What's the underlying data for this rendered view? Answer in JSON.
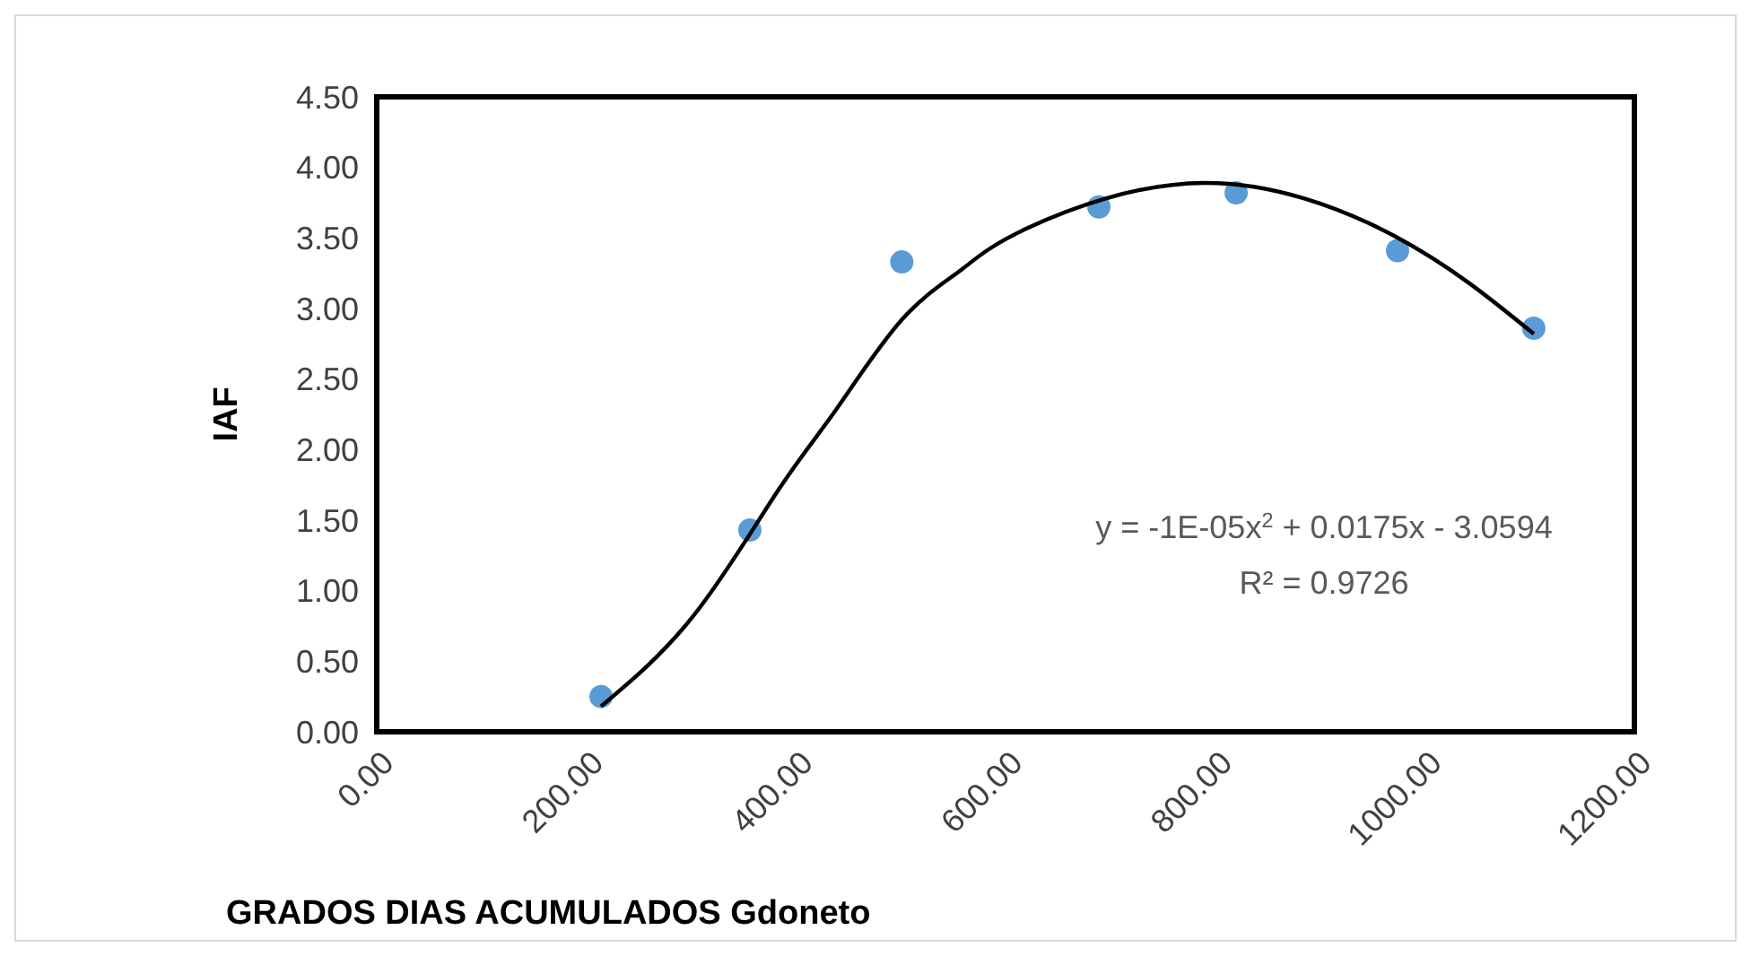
{
  "chart_data": {
    "type": "scatter",
    "xlabel": "GRADOS DIAS ACUMULADOS Gdoneto",
    "ylabel": "IAF",
    "xlim": [
      0,
      1200
    ],
    "ylim": [
      0,
      4.5
    ],
    "xticks": [
      {
        "value": 0,
        "label": "0.00"
      },
      {
        "value": 200,
        "label": "200.00"
      },
      {
        "value": 400,
        "label": "400.00"
      },
      {
        "value": 600,
        "label": "600.00"
      },
      {
        "value": 800,
        "label": "800.00"
      },
      {
        "value": 1000,
        "label": "1000.00"
      },
      {
        "value": 1200,
        "label": "1200.00"
      }
    ],
    "yticks": [
      {
        "value": 0,
        "label": "0.00"
      },
      {
        "value": 0.5,
        "label": "0.50"
      },
      {
        "value": 1,
        "label": "1.00"
      },
      {
        "value": 1.5,
        "label": "1.50"
      },
      {
        "value": 2,
        "label": "2.00"
      },
      {
        "value": 2.5,
        "label": "2.50"
      },
      {
        "value": 3,
        "label": "3.00"
      },
      {
        "value": 3.5,
        "label": "3.50"
      },
      {
        "value": 4,
        "label": "4.00"
      },
      {
        "value": 4.5,
        "label": "4.50"
      }
    ],
    "grid": false,
    "series": [
      {
        "color": "#5b9bd5",
        "marker": "circle",
        "x": [
          214,
          356,
          501,
          689,
          820,
          974,
          1104
        ],
        "values": [
          0.25,
          1.43,
          3.33,
          3.72,
          3.82,
          3.41,
          2.86
        ]
      },
      {
        "type": "line",
        "color": "#000000",
        "marker": "none",
        "line_style": "solid",
        "x": [
          214,
          302,
          382,
          438,
          501,
          557,
          621,
          789,
          972,
          1104
        ],
        "values": [
          0.18,
          0.82,
          1.7,
          2.28,
          2.92,
          3.27,
          3.57,
          3.89,
          3.51,
          2.82
        ]
      }
    ],
    "annotations": [
      "y = -1E-05x$^{2}$ + 0.0175x - 3.0594",
      "R² = 0.9726"
    ]
  }
}
